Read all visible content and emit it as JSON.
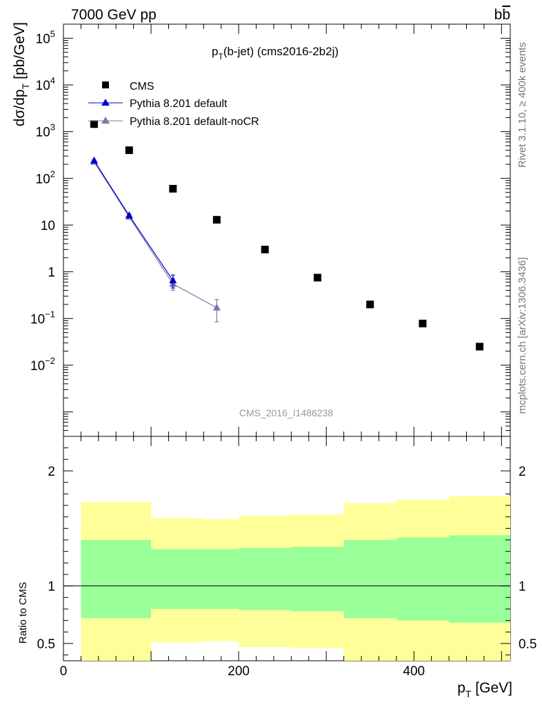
{
  "header": {
    "left": "7000 GeV pp",
    "right_b": "b",
    "right_bbar": "b"
  },
  "title": {
    "main": "p",
    "sub": "T",
    "rest": "(b-jet) (cms2016-2b2j)"
  },
  "side_labels": {
    "rivet": "Rivet 3.1.10, ≥ 400k events",
    "mcplots": "mcplots.cern.ch [arXiv:1306.3436]"
  },
  "watermark": "CMS_2016_I1486238",
  "y_axis": {
    "label_main": "dσ/dp",
    "label_sub": "T",
    "label_unit": " [pb/GeV]"
  },
  "x_axis": {
    "label_main": "p",
    "label_sub": "T",
    "label_unit": " [GeV]"
  },
  "ratio_axis": {
    "label": "Ratio to CMS"
  },
  "legend": [
    {
      "label": "CMS",
      "marker": "square",
      "color": "#000000"
    },
    {
      "label": "Pythia 8.201 default",
      "marker": "triangle",
      "color": "#0000cc"
    },
    {
      "label": "Pythia 8.201 default-noCR",
      "marker": "triangle",
      "color": "#7777aa"
    }
  ],
  "chart_data": {
    "type": "scatter",
    "xlim": [
      0,
      510
    ],
    "main_ylim_log": [
      0.0003,
      200000
    ],
    "ratio_ylim": [
      0.35,
      2.3
    ],
    "x_ticks": [
      0,
      200,
      400
    ],
    "main_y_ticks": [
      {
        "value": 0.01,
        "base": "10",
        "exp": "−2"
      },
      {
        "value": 0.1,
        "base": "10",
        "exp": "−1"
      },
      {
        "value": 1,
        "base": "1",
        "exp": ""
      },
      {
        "value": 10,
        "base": "10",
        "exp": ""
      },
      {
        "value": 100,
        "base": "10",
        "exp": "2"
      },
      {
        "value": 1000,
        "base": "10",
        "exp": "3"
      },
      {
        "value": 10000,
        "base": "10",
        "exp": "4"
      },
      {
        "value": 100000,
        "base": "10",
        "exp": "5"
      }
    ],
    "ratio_y_ticks": [
      {
        "value": 0.5,
        "label": "0.5"
      },
      {
        "value": 1,
        "label": "1"
      },
      {
        "value": 2,
        "label": "2"
      }
    ],
    "series": [
      {
        "name": "CMS",
        "x": [
          35,
          75,
          125,
          175,
          230,
          290,
          350,
          410,
          475
        ],
        "y": [
          1450,
          400,
          60,
          13,
          3.0,
          0.75,
          0.2,
          0.078,
          0.025
        ]
      },
      {
        "name": "Pythia 8.201 default",
        "x": [
          35,
          75,
          125
        ],
        "y": [
          240,
          16,
          0.65
        ],
        "err": [
          10,
          1,
          0.2
        ]
      },
      {
        "name": "Pythia 8.201 default-noCR",
        "x": [
          35,
          75,
          125,
          175
        ],
        "y": [
          225,
          15,
          0.55,
          0.17
        ],
        "err": [
          10,
          1,
          0.15,
          0.085
        ]
      }
    ],
    "ratio_bands": [
      {
        "x0": 20,
        "x1": 100,
        "green": [
          0.72,
          1.4
        ],
        "yellow": [
          0.35,
          1.73
        ]
      },
      {
        "x0": 100,
        "x1": 160,
        "green": [
          0.8,
          1.32
        ],
        "yellow": [
          0.51,
          1.59
        ]
      },
      {
        "x0": 160,
        "x1": 200,
        "green": [
          0.8,
          1.32
        ],
        "yellow": [
          0.52,
          1.58
        ]
      },
      {
        "x0": 200,
        "x1": 260,
        "green": [
          0.79,
          1.33
        ],
        "yellow": [
          0.47,
          1.61
        ]
      },
      {
        "x0": 260,
        "x1": 320,
        "green": [
          0.78,
          1.34
        ],
        "yellow": [
          0.46,
          1.62
        ]
      },
      {
        "x0": 320,
        "x1": 380,
        "green": [
          0.72,
          1.4
        ],
        "yellow": [
          0.35,
          1.72
        ]
      },
      {
        "x0": 380,
        "x1": 440,
        "green": [
          0.7,
          1.42
        ],
        "yellow": [
          0.35,
          1.75
        ]
      },
      {
        "x0": 440,
        "x1": 510,
        "green": [
          0.68,
          1.44
        ],
        "yellow": [
          0.35,
          1.78
        ]
      }
    ],
    "colors": {
      "green": "#99ff99",
      "yellow": "#ffff99",
      "cms": "#000000",
      "default": "#0000cc",
      "noCR": "#7777aa"
    }
  }
}
